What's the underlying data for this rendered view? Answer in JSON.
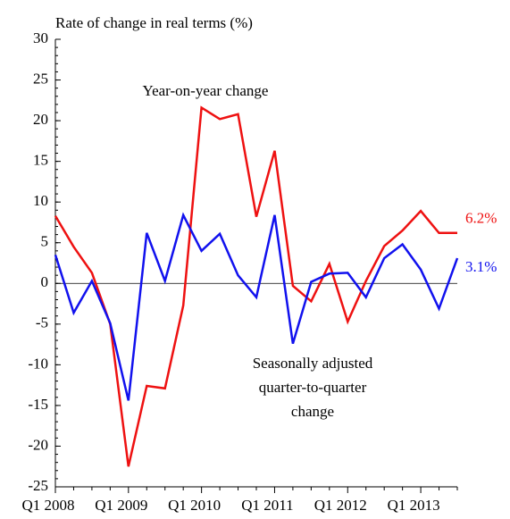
{
  "chart_data": {
    "type": "line",
    "title": "Rate of change in real terms (%)",
    "categories": [
      "Q1 2008",
      null,
      null,
      null,
      "Q1 2009",
      null,
      null,
      null,
      "Q1 2010",
      null,
      null,
      null,
      "Q1 2011",
      null,
      null,
      null,
      "Q1 2012",
      null,
      null,
      null,
      "Q1 2013",
      null,
      null
    ],
    "series": [
      {
        "name": "Year-on-year change",
        "color": "#ee1111",
        "values": [
          8.3,
          4.5,
          1.3,
          -5,
          -22.5,
          -12.6,
          -12.9,
          -2.7,
          21.6,
          20.2,
          20.8,
          8.2,
          16.3,
          -0.3,
          -2.2,
          2.4,
          -4.7,
          0.3,
          4.6,
          6.5,
          8.9,
          6.2,
          6.2
        ],
        "value_labels": [
          null,
          null,
          null,
          null,
          null,
          null,
          null,
          null,
          null,
          null,
          null,
          null,
          null,
          null,
          null,
          null,
          null,
          null,
          null,
          null,
          null,
          null,
          "6.2%"
        ]
      },
      {
        "name": "Seasonally adjusted quarter-to-quarter change",
        "color": "#1111ee",
        "values": [
          3.5,
          -3.6,
          0.3,
          -4.9,
          -14.4,
          6.2,
          0.3,
          8.4,
          4.0,
          6.1,
          1.0,
          -1.7,
          8.4,
          -7.4,
          0.2,
          1.2,
          1.3,
          -1.7,
          3.1,
          4.8,
          1.7,
          -3.1,
          3.1
        ],
        "value_labels": [
          null,
          null,
          null,
          null,
          null,
          null,
          null,
          null,
          null,
          null,
          null,
          null,
          null,
          null,
          null,
          null,
          null,
          null,
          null,
          null,
          null,
          null,
          "3.1%"
        ]
      }
    ],
    "annotations": [
      {
        "lines": [
          "Year-on-year change"
        ]
      },
      {
        "lines": [
          "Seasonally adjusted",
          "quarter-to-quarter",
          "change"
        ]
      }
    ],
    "ylim": [
      -25,
      30
    ],
    "yticks": [
      -25,
      -20,
      -15,
      -10,
      -5,
      0,
      5,
      10,
      15,
      20,
      25,
      30
    ],
    "zero_line": true
  }
}
